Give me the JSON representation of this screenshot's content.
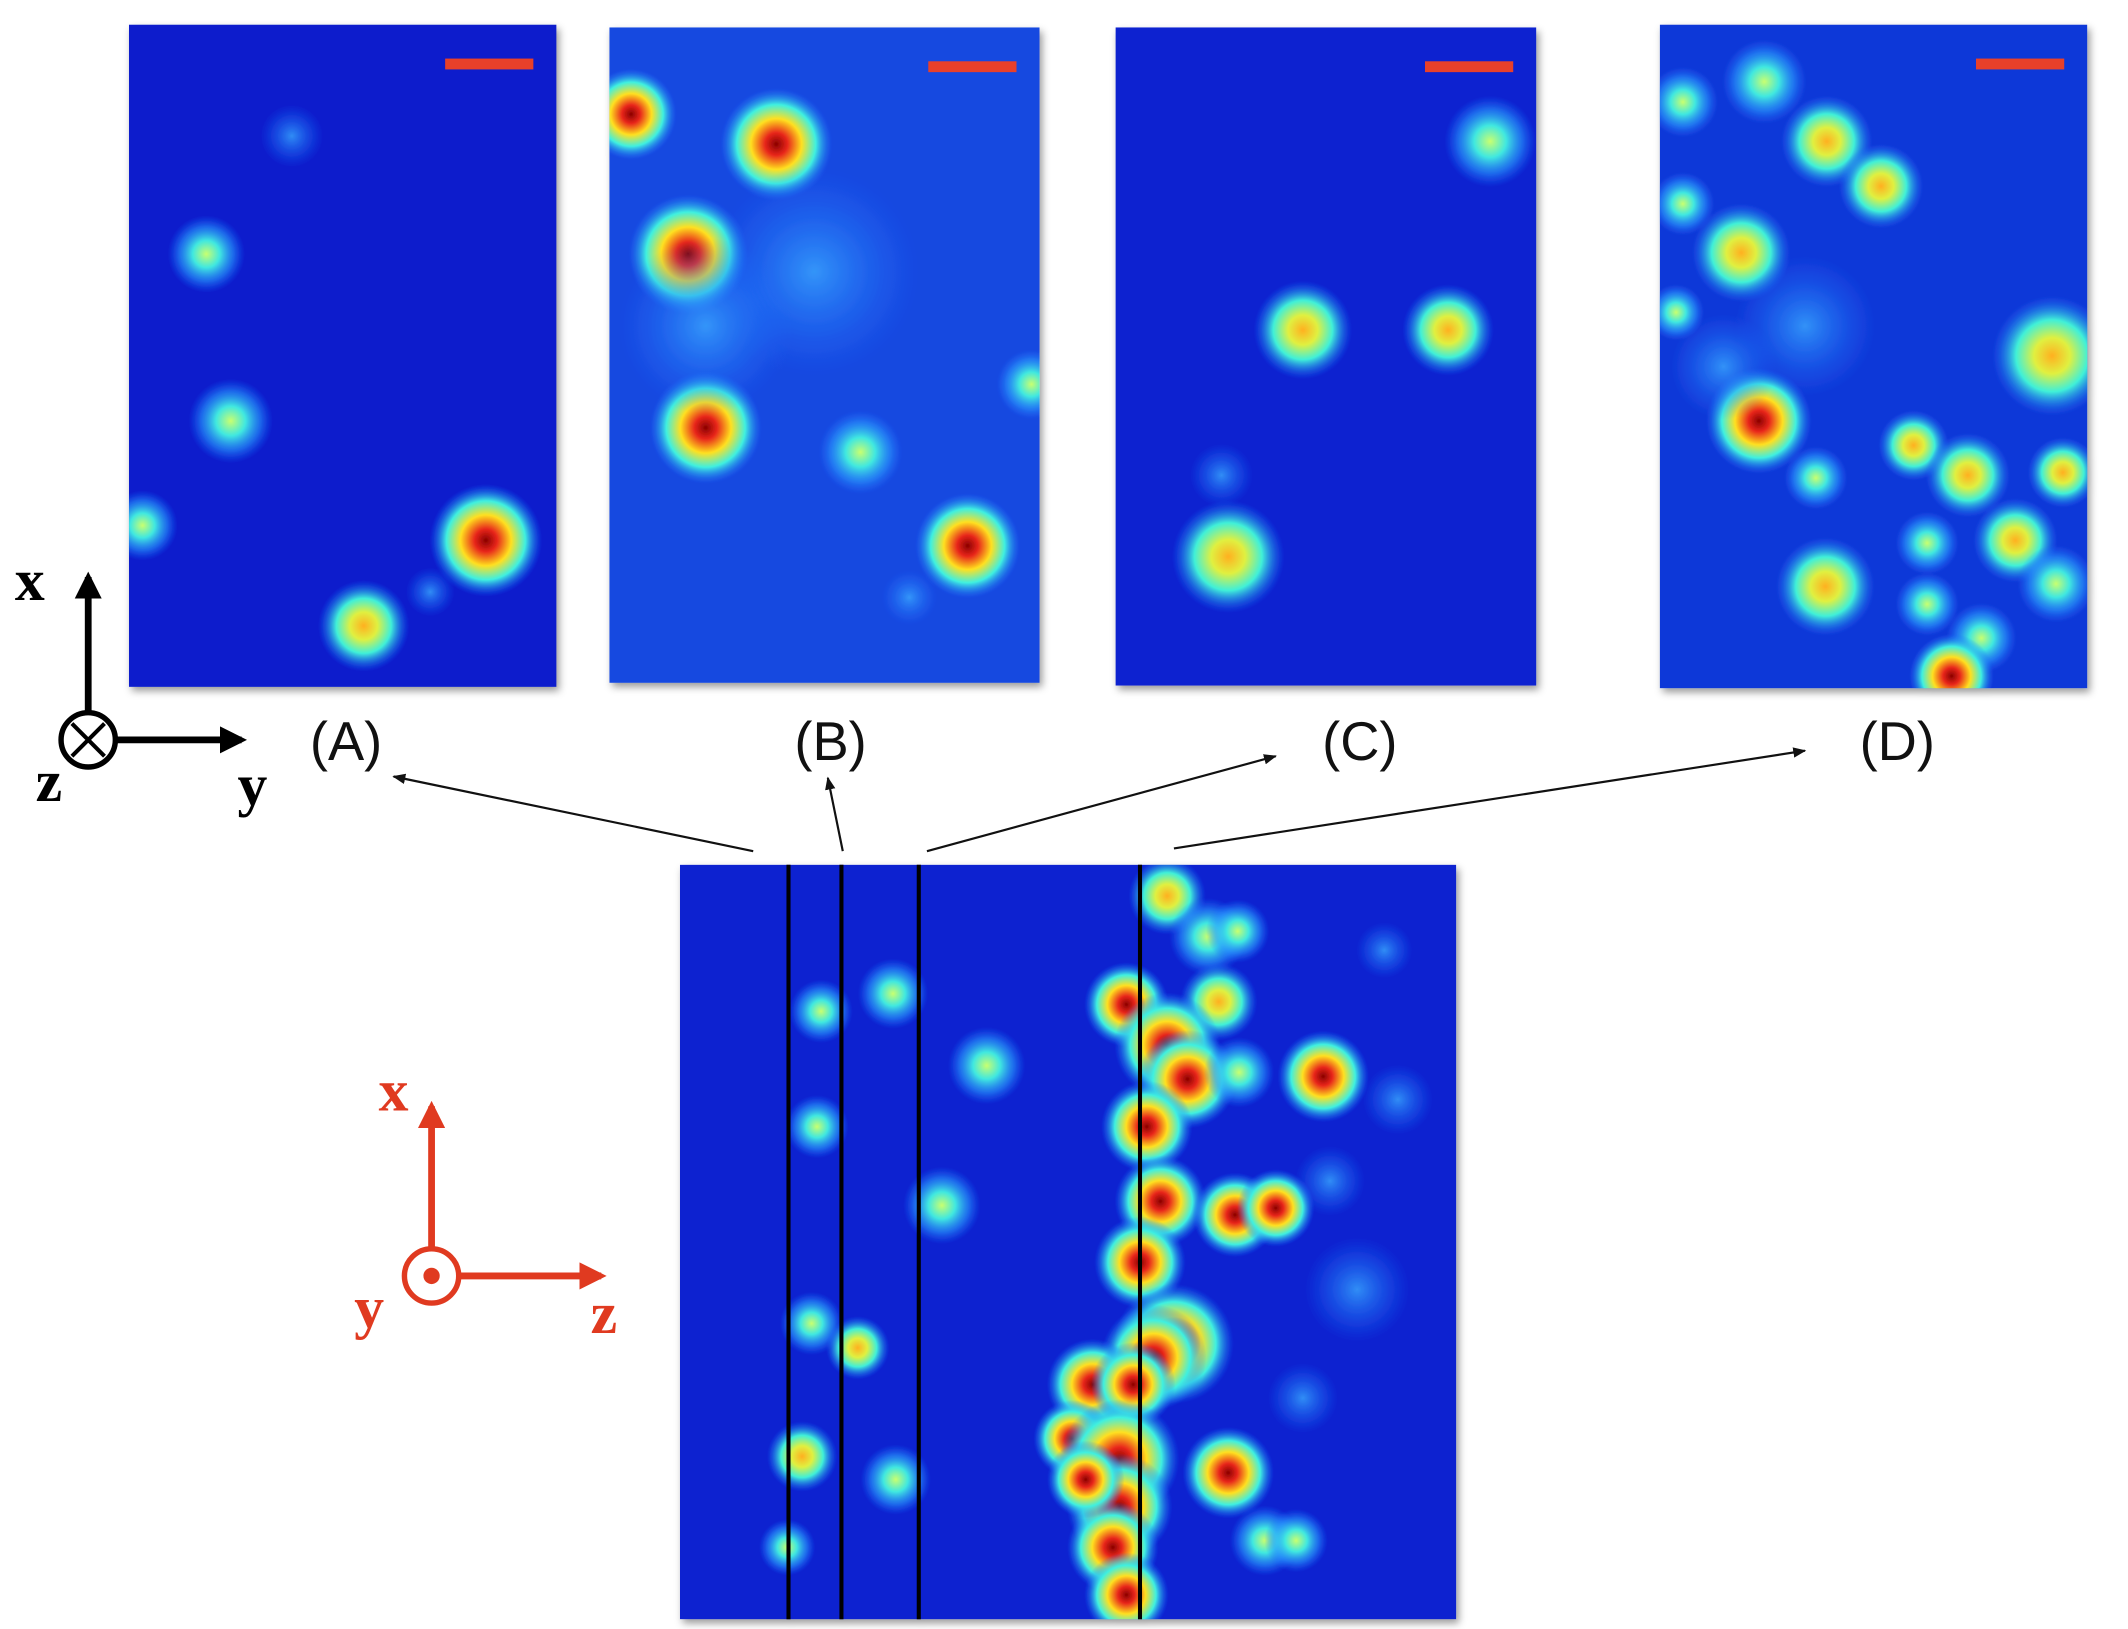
{
  "panels": [
    {
      "label": "(A)"
    },
    {
      "label": "(B)"
    },
    {
      "label": "(C)"
    },
    {
      "label": "(D)"
    }
  ],
  "top_axes": {
    "x": "x",
    "y": "y",
    "z": "z"
  },
  "bottom_axes": {
    "x": "x",
    "y": "y",
    "z": "z"
  }
}
